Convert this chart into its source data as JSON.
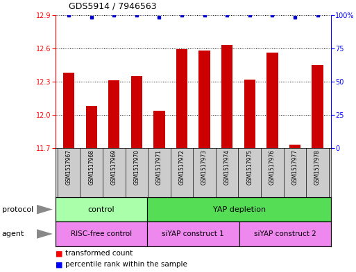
{
  "title": "GDS5914 / 7946563",
  "samples": [
    "GSM1517967",
    "GSM1517968",
    "GSM1517969",
    "GSM1517970",
    "GSM1517971",
    "GSM1517972",
    "GSM1517973",
    "GSM1517974",
    "GSM1517975",
    "GSM1517976",
    "GSM1517977",
    "GSM1517978"
  ],
  "bar_values": [
    12.38,
    12.08,
    12.31,
    12.35,
    12.04,
    12.59,
    12.58,
    12.63,
    12.32,
    12.56,
    11.73,
    12.45
  ],
  "percentile_values": [
    100,
    98,
    100,
    100,
    98,
    100,
    100,
    100,
    100,
    100,
    98,
    100
  ],
  "bar_color": "#cc0000",
  "dot_color": "#0000cc",
  "ylim_left": [
    11.7,
    12.9
  ],
  "yticks_left": [
    11.7,
    12.0,
    12.3,
    12.6,
    12.9
  ],
  "ylim_right": [
    0,
    100
  ],
  "yticks_right": [
    0,
    25,
    50,
    75,
    100
  ],
  "yticklabels_right": [
    "0",
    "25",
    "50",
    "75",
    "100%"
  ],
  "bar_width": 0.5,
  "background_color": "#ffffff",
  "legend_red_label": "transformed count",
  "legend_blue_label": "percentile rank within the sample",
  "protocol_row_label": "protocol",
  "agent_row_label": "agent",
  "proto_spans": [
    [
      0,
      4,
      "control",
      "#aaffaa"
    ],
    [
      4,
      12,
      "YAP depletion",
      "#55dd55"
    ]
  ],
  "agent_spans": [
    [
      0,
      4,
      "RISC-free control",
      "#ee88ee"
    ],
    [
      4,
      8,
      "siYAP construct 1",
      "#ee88ee"
    ],
    [
      8,
      12,
      "siYAP construct 2",
      "#ee88ee"
    ]
  ],
  "sample_bg": "#cccccc",
  "arrow_color": "#888888"
}
